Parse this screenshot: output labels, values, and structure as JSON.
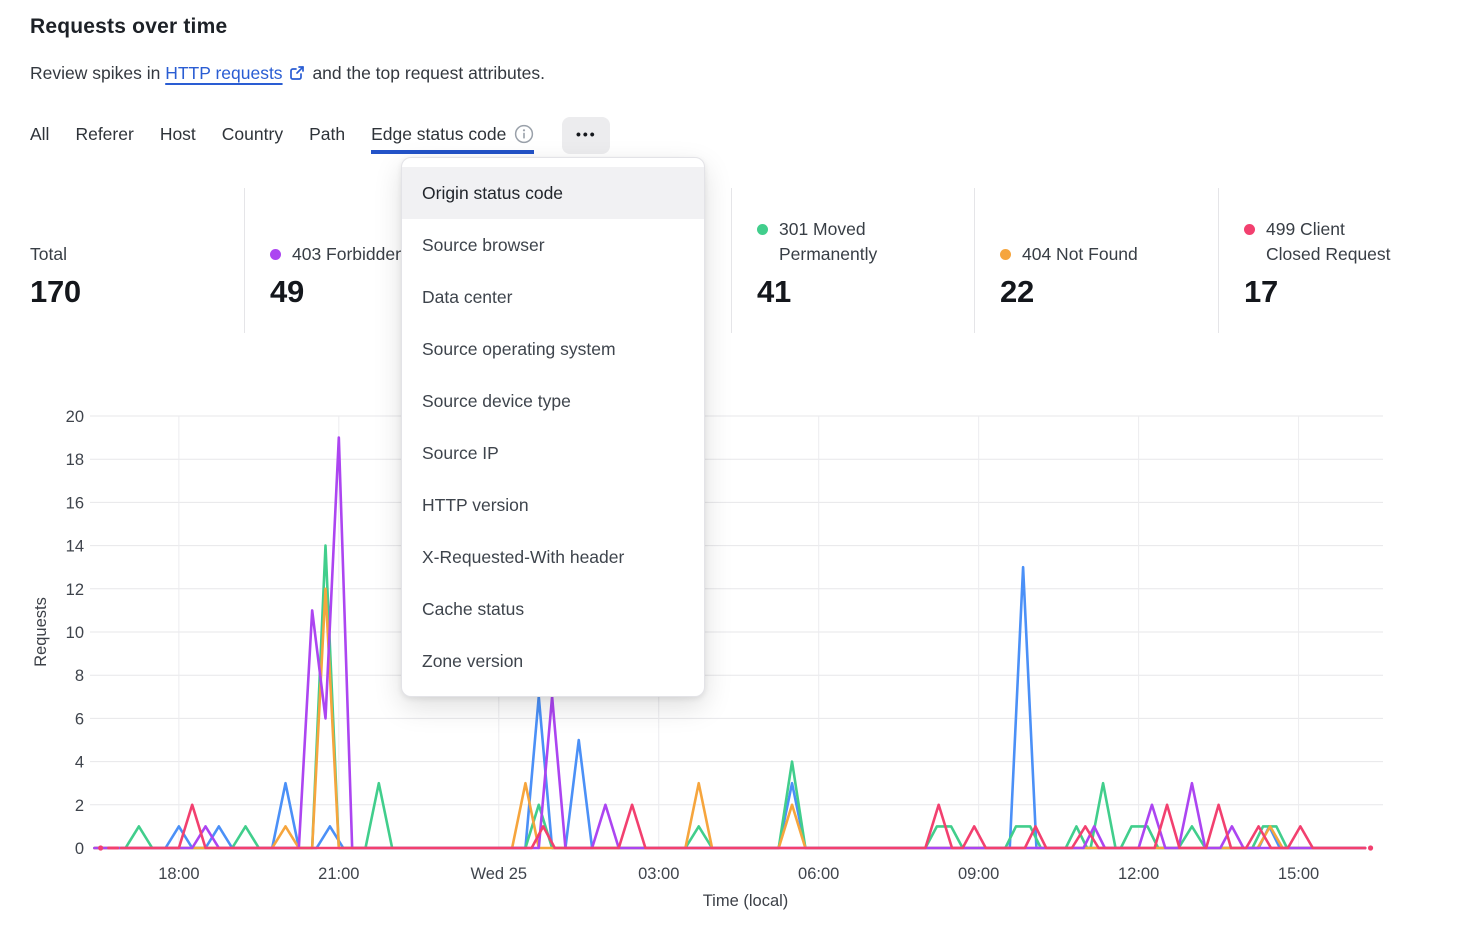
{
  "header": {
    "title": "Requests over time",
    "subtitle_prefix": "Review spikes in",
    "subtitle_link": "HTTP requests",
    "subtitle_suffix": "and the top request attributes."
  },
  "colors": {
    "link_blue": "#2A5DD3",
    "tab_underline_blue": "#2353C8",
    "series_blue": "#4B90F7",
    "series_green": "#41CE8C",
    "series_orange": "#F6A53D",
    "series_purple": "#AC45F1",
    "series_pink": "#F2406F"
  },
  "tabs": {
    "items": [
      "All",
      "Referer",
      "Host",
      "Country",
      "Path",
      "Edge status code"
    ],
    "active": "Edge status code",
    "active_has_info_icon": true,
    "more_label": "•••"
  },
  "dropdown": {
    "highlighted": "Origin status code",
    "items": [
      "Origin status code",
      "Source browser",
      "Data center",
      "Source operating system",
      "Source device type",
      "Source IP",
      "HTTP version",
      "X-Requested-With header",
      "Cache status",
      "Zone version"
    ]
  },
  "stats": {
    "cards": [
      {
        "lines": [
          "Total"
        ],
        "value": "170",
        "color": null,
        "col": 0
      },
      {
        "lines": [
          "403 Forbidden"
        ],
        "value": "49",
        "color": "#AC45F1",
        "col": 1
      },
      {
        "lines": [
          "301 Moved",
          "Permanently"
        ],
        "value": "41",
        "color": "#41CE8C",
        "col": 3
      },
      {
        "lines": [
          "404 Not Found"
        ],
        "value": "22",
        "color": "#F6A53D",
        "col": 4
      },
      {
        "lines": [
          "499 Client",
          "Closed Request"
        ],
        "value": "17",
        "color": "#F2406F",
        "col": 5
      }
    ]
  },
  "chart_data": {
    "type": "line",
    "title": "Requests over time",
    "xlabel": "Time (local)",
    "ylabel": "Requests",
    "ylim": [
      0,
      20
    ],
    "ytick_step": 2,
    "grid": true,
    "legend_position": "stat cards above chart",
    "x_unit": "minutes since 00:00 of first day (Tue); 1440 = midnight Wed 25",
    "x_domain_minutes": [
      980,
      2435
    ],
    "x_ticks": [
      {
        "label": "18:00",
        "t": 1080
      },
      {
        "label": "21:00",
        "t": 1260
      },
      {
        "label": "Wed 25",
        "t": 1440
      },
      {
        "label": "03:00",
        "t": 1620
      },
      {
        "label": "06:00",
        "t": 1800
      },
      {
        "label": "09:00",
        "t": 1980
      },
      {
        "label": "12:00",
        "t": 2160
      },
      {
        "label": "15:00",
        "t": 2340
      }
    ],
    "series": [
      {
        "name": "",
        "label_visible": false,
        "color": "#4B90F7",
        "points": [
          [
            985,
            0
          ],
          [
            1065,
            0
          ],
          [
            1080,
            1
          ],
          [
            1095,
            0
          ],
          [
            1110,
            0
          ],
          [
            1125,
            1
          ],
          [
            1140,
            0
          ],
          [
            1185,
            0
          ],
          [
            1200,
            3
          ],
          [
            1215,
            0
          ],
          [
            1235,
            0
          ],
          [
            1250,
            1
          ],
          [
            1265,
            0
          ],
          [
            1470,
            0
          ],
          [
            1485,
            7
          ],
          [
            1500,
            0
          ],
          [
            1515,
            0
          ],
          [
            1530,
            5
          ],
          [
            1545,
            0
          ],
          [
            1755,
            0
          ],
          [
            1770,
            3
          ],
          [
            1785,
            0
          ],
          [
            2015,
            0
          ],
          [
            2030,
            13
          ],
          [
            2045,
            0
          ],
          [
            2295,
            0
          ],
          [
            2307,
            1
          ],
          [
            2319,
            0
          ],
          [
            2415,
            0
          ]
        ]
      },
      {
        "name": "301 Moved Permanently",
        "label_visible": true,
        "color": "#41CE8C",
        "points": [
          [
            985,
            0
          ],
          [
            1020,
            0
          ],
          [
            1035,
            1
          ],
          [
            1050,
            0
          ],
          [
            1140,
            0
          ],
          [
            1155,
            1
          ],
          [
            1170,
            0
          ],
          [
            1230,
            0
          ],
          [
            1245,
            14
          ],
          [
            1260,
            0
          ],
          [
            1290,
            0
          ],
          [
            1305,
            3
          ],
          [
            1320,
            0
          ],
          [
            1470,
            0
          ],
          [
            1485,
            2
          ],
          [
            1500,
            0
          ],
          [
            1650,
            0
          ],
          [
            1665,
            1
          ],
          [
            1680,
            0
          ],
          [
            1755,
            0
          ],
          [
            1770,
            4
          ],
          [
            1785,
            0
          ],
          [
            1920,
            0
          ],
          [
            1933,
            1
          ],
          [
            1949,
            1
          ],
          [
            1962,
            0
          ],
          [
            2010,
            0
          ],
          [
            2022,
            1
          ],
          [
            2038,
            1
          ],
          [
            2050,
            0
          ],
          [
            2078,
            0
          ],
          [
            2090,
            1
          ],
          [
            2102,
            0
          ],
          [
            2106,
            0
          ],
          [
            2120,
            3
          ],
          [
            2134,
            0
          ],
          [
            2140,
            0
          ],
          [
            2152,
            1
          ],
          [
            2170,
            1
          ],
          [
            2182,
            0
          ],
          [
            2205,
            0
          ],
          [
            2220,
            1
          ],
          [
            2235,
            0
          ],
          [
            2288,
            0
          ],
          [
            2300,
            1
          ],
          [
            2315,
            1
          ],
          [
            2327,
            0
          ],
          [
            2415,
            0
          ]
        ]
      },
      {
        "name": "404 Not Found",
        "label_visible": true,
        "color": "#F6A53D",
        "points": [
          [
            985,
            0
          ],
          [
            1185,
            0
          ],
          [
            1200,
            1
          ],
          [
            1215,
            0
          ],
          [
            1230,
            0
          ],
          [
            1245,
            12
          ],
          [
            1260,
            0
          ],
          [
            1455,
            0
          ],
          [
            1470,
            3
          ],
          [
            1485,
            0
          ],
          [
            1650,
            0
          ],
          [
            1665,
            3
          ],
          [
            1680,
            0
          ],
          [
            1755,
            0
          ],
          [
            1770,
            2
          ],
          [
            1785,
            0
          ],
          [
            2294,
            0
          ],
          [
            2308,
            1
          ],
          [
            2322,
            0
          ],
          [
            2415,
            0
          ]
        ]
      },
      {
        "name": "403 Forbidden",
        "label_visible": true,
        "color": "#AC45F1",
        "points": [
          [
            985,
            0
          ],
          [
            1095,
            0
          ],
          [
            1110,
            1
          ],
          [
            1125,
            0
          ],
          [
            1215,
            0
          ],
          [
            1230,
            11
          ],
          [
            1245,
            6
          ],
          [
            1260,
            19
          ],
          [
            1275,
            0
          ],
          [
            1485,
            0
          ],
          [
            1500,
            7
          ],
          [
            1515,
            0
          ],
          [
            1545,
            0
          ],
          [
            1560,
            2
          ],
          [
            1575,
            0
          ],
          [
            2098,
            0
          ],
          [
            2110,
            1
          ],
          [
            2122,
            0
          ],
          [
            2160,
            0
          ],
          [
            2175,
            2
          ],
          [
            2190,
            0
          ],
          [
            2205,
            0
          ],
          [
            2220,
            3
          ],
          [
            2235,
            0
          ],
          [
            2252,
            0
          ],
          [
            2265,
            1
          ],
          [
            2278,
            0
          ],
          [
            2415,
            0
          ]
        ]
      },
      {
        "name": "499 Client Closed Request",
        "label_visible": true,
        "color": "#F2406F",
        "prefix_dot": 992,
        "prefix_dash": [
          [
            1001,
            0
          ],
          [
            1011,
            0
          ]
        ],
        "end_dot": 2421,
        "points": [
          [
            1015,
            0
          ],
          [
            1080,
            0
          ],
          [
            1095,
            2
          ],
          [
            1110,
            0
          ],
          [
            1477,
            0
          ],
          [
            1490,
            1
          ],
          [
            1503,
            0
          ],
          [
            1575,
            0
          ],
          [
            1590,
            2
          ],
          [
            1605,
            0
          ],
          [
            1920,
            0
          ],
          [
            1935,
            2
          ],
          [
            1950,
            0
          ],
          [
            1962,
            0
          ],
          [
            1975,
            1
          ],
          [
            1988,
            0
          ],
          [
            2032,
            0
          ],
          [
            2044,
            1
          ],
          [
            2056,
            0
          ],
          [
            2085,
            0
          ],
          [
            2100,
            1
          ],
          [
            2115,
            0
          ],
          [
            2178,
            0
          ],
          [
            2192,
            2
          ],
          [
            2206,
            0
          ],
          [
            2236,
            0
          ],
          [
            2250,
            2
          ],
          [
            2264,
            0
          ],
          [
            2281,
            0
          ],
          [
            2295,
            1
          ],
          [
            2309,
            0
          ],
          [
            2328,
            0
          ],
          [
            2342,
            1
          ],
          [
            2356,
            0
          ],
          [
            2415,
            0
          ]
        ]
      }
    ]
  }
}
